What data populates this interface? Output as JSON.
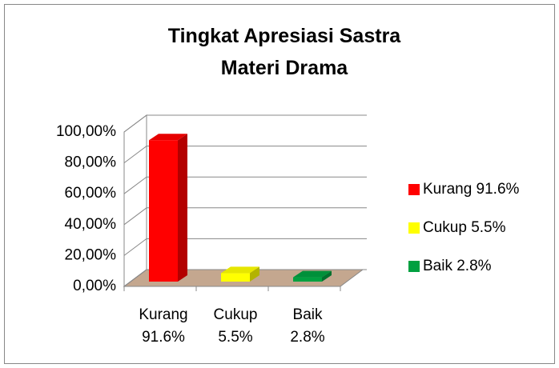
{
  "chart_data": {
    "type": "bar3d",
    "title": "Tingkat Apresiasi Sastra Materi Drama",
    "categories": [
      "Kurang 91.6%",
      "Cukup 5.5%",
      "Baik 2.8%"
    ],
    "values": [
      91.6,
      5.5,
      2.8
    ],
    "colors": [
      "#ff0000",
      "#ffff00",
      "#00a040"
    ],
    "ylim": [
      0,
      100
    ],
    "yticks": [
      {
        "value": 0,
        "label": "0,00%"
      },
      {
        "value": 20,
        "label": "20,00%"
      },
      {
        "value": 40,
        "label": "40,00%"
      },
      {
        "value": 60,
        "label": "60,00%"
      },
      {
        "value": 80,
        "label": "80,00%"
      },
      {
        "value": 100,
        "label": "100,00%"
      }
    ],
    "grid": true,
    "legend": "right"
  }
}
